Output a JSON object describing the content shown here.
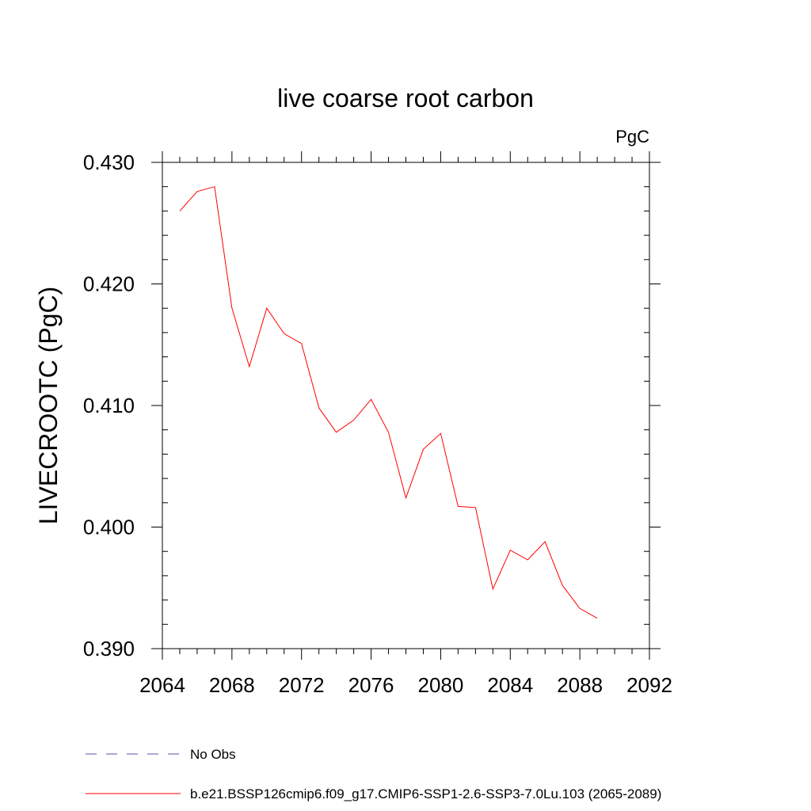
{
  "chart_data": {
    "type": "line",
    "title": "live coarse root carbon",
    "units": "PgC",
    "xlabel": "",
    "ylabel": "LIVECROOTC  (PgC)",
    "xlim": [
      2064,
      2092
    ],
    "ylim": [
      0.39,
      0.43
    ],
    "x_ticks": [
      2064,
      2068,
      2072,
      2076,
      2080,
      2084,
      2088,
      2092
    ],
    "y_ticks": [
      "0.390",
      "0.400",
      "0.410",
      "0.420",
      "0.430"
    ],
    "series": [
      {
        "name": "b.e21.BSSP126cmip6.f09_g17.CMIP6-SSP1-2.6-SSP3-7.0Lu.103 (2065-2089)",
        "color": "#ff0000",
        "dash": "solid",
        "x": [
          2065,
          2066,
          2067,
          2068,
          2069,
          2070,
          2071,
          2072,
          2073,
          2074,
          2075,
          2076,
          2077,
          2078,
          2079,
          2080,
          2081,
          2082,
          2083,
          2084,
          2085,
          2086,
          2087,
          2088,
          2089
        ],
        "values": [
          0.426,
          0.4276,
          0.428,
          0.418,
          0.4132,
          0.418,
          0.4159,
          0.4151,
          0.4098,
          0.4078,
          0.4088,
          0.4105,
          0.4078,
          0.4024,
          0.4064,
          0.4077,
          0.4017,
          0.4016,
          0.3949,
          0.3981,
          0.3973,
          0.3988,
          0.3952,
          0.3933,
          0.3925
        ]
      }
    ],
    "legend": [
      {
        "label": "No Obs",
        "color": "#5b4fa8",
        "dash": "dashed"
      },
      {
        "label": "b.e21.BSSP126cmip6.f09_g17.CMIP6-SSP1-2.6-SSP3-7.0Lu.103 (2065-2089)",
        "color": "#ff0000",
        "dash": "solid"
      }
    ],
    "legend_position": "bottom-left"
  }
}
